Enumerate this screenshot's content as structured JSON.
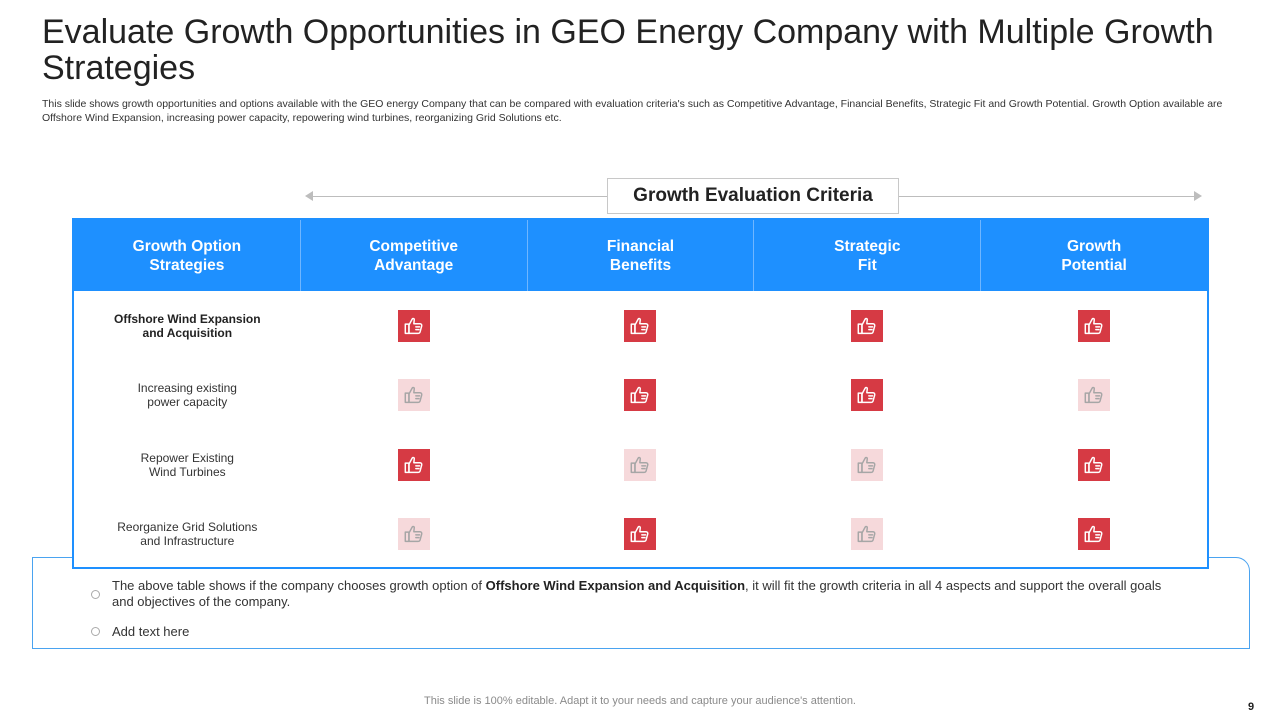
{
  "slide": {
    "title": "Evaluate Growth Opportunities in GEO Energy Company with Multiple Growth Strategies",
    "subtitle": "This slide shows growth opportunities and options available with the GEO energy Company  that can be compared with evaluation criteria's such as Competitive Advantage, Financial Benefits, Strategic Fit and Growth Potential. Growth Option available are Offshore Wind Expansion, increasing power capacity, repowering wind turbines, reorganizing Grid Solutions etc.",
    "criteria_label": "Growth Evaluation Criteria",
    "footer": "This slide is 100% editable. Adapt it to your needs and capture your audience's attention.",
    "page_number": "9"
  },
  "table": {
    "headers": [
      "Growth Option\nStrategies",
      "Competitive\nAdvantage",
      "Financial\nBenefits",
      "Strategic\nFit",
      "Growth\nPotential"
    ],
    "rows": [
      {
        "label": "Offshore Wind Expansion\nand Acquisition",
        "bold": true,
        "marks": [
          true,
          true,
          true,
          true
        ]
      },
      {
        "label": "Increasing existing\npower capacity",
        "bold": false,
        "marks": [
          false,
          true,
          true,
          false
        ]
      },
      {
        "label": "Repower Existing\nWind Turbines",
        "bold": false,
        "marks": [
          true,
          false,
          false,
          true
        ]
      },
      {
        "label": "Reorganize Grid Solutions\nand Infrastructure",
        "bold": false,
        "marks": [
          false,
          true,
          false,
          true
        ]
      }
    ],
    "icon": "thumbs-up-icon",
    "colors": {
      "header": "#1e90ff",
      "mark_on": "#d63a44",
      "mark_off": "#f6d9db"
    }
  },
  "notes": {
    "note1_prefix": "The above table shows if the company chooses growth option of ",
    "note1_bold": "Offshore Wind Expansion and Acquisition",
    "note1_suffix": ", it will fit the growth criteria in all 4 aspects and support the overall goals and objectives of the company.",
    "note2": "Add text here"
  }
}
